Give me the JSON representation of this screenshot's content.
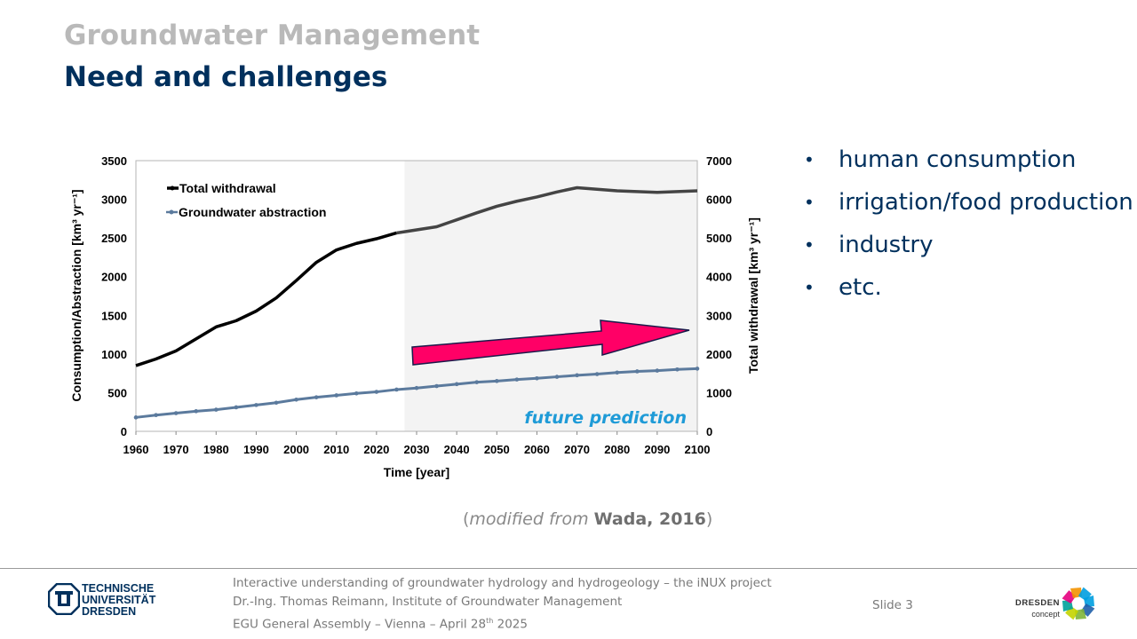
{
  "header": {
    "title": "Groundwater Management",
    "subtitle": "Need and challenges"
  },
  "bullets": [
    "human consumption",
    "irrigation/food production",
    "industry",
    "etc."
  ],
  "citation": {
    "prefix": "(",
    "italic": "modified  from",
    "bold": "Wada, 2016",
    "suffix": ")"
  },
  "footer": {
    "institution_logo": [
      "TECHNISCHE",
      "UNIVERSITÄT",
      "DRESDEN"
    ],
    "line1": "Interactive understanding of groundwater hydrology and hydrogeology – the iNUX project",
    "line2": "Dr.-Ing. Thomas Reimann, Institute of Groundwater Management",
    "line3_pre": "EGU General Assembly – Vienna – April 28",
    "line3_sup": "th",
    "line3_post": " 2025",
    "slide_label": "Slide 3",
    "partner_logo": [
      "DRESDEN",
      "concept"
    ]
  },
  "colors": {
    "title_gray": "#b9b9b9",
    "navy": "#00305d",
    "total_line": "#000000",
    "gw_line": "#5b7a9d",
    "arrow_fill": "#ff0066",
    "future_text": "#1f9bd7",
    "future_bg": "#f3f3f3"
  },
  "chart_data": {
    "type": "line",
    "xlabel": "Time [year]",
    "ylabel_left": "Consumption/Abstraction [km³ yr⁻¹]",
    "ylabel_right": "Total withdrawal [km³ yr⁻¹]",
    "xlim": [
      1960,
      2100
    ],
    "ylim_left": [
      0,
      3500
    ],
    "ylim_right": [
      0,
      7000
    ],
    "x_ticks": [
      "1960",
      "1970",
      "1980",
      "1990",
      "2000",
      "2010",
      "2020",
      "2030",
      "2040",
      "2050",
      "2060",
      "2070",
      "2080",
      "2090",
      "2100"
    ],
    "y_ticks_left": [
      "0",
      "500",
      "1000",
      "1500",
      "2000",
      "2500",
      "3000",
      "3500"
    ],
    "y_ticks_right": [
      "0",
      "1000",
      "2000",
      "3000",
      "4000",
      "5000",
      "6000",
      "7000"
    ],
    "future_region_start": 2027,
    "annotation": "future prediction",
    "legend_position": "top-left",
    "series": [
      {
        "name": "Total withdrawal",
        "axis": "right",
        "x": [
          1960,
          1965,
          1970,
          1975,
          1980,
          1985,
          1990,
          1995,
          2000,
          2005,
          2010,
          2015,
          2020,
          2025,
          2030,
          2035,
          2040,
          2045,
          2050,
          2055,
          2060,
          2065,
          2070,
          2075,
          2080,
          2085,
          2090,
          2095,
          2100
        ],
        "values": [
          1700,
          1870,
          2080,
          2390,
          2700,
          2860,
          3110,
          3450,
          3900,
          4370,
          4690,
          4860,
          4980,
          5130,
          5210,
          5290,
          5470,
          5650,
          5820,
          5950,
          6060,
          6190,
          6300,
          6260,
          6220,
          6200,
          6180,
          6200,
          6220
        ]
      },
      {
        "name": "Groundwater abstraction",
        "axis": "left",
        "x": [
          1960,
          1965,
          1970,
          1975,
          1980,
          1985,
          1990,
          1995,
          2000,
          2005,
          2010,
          2015,
          2020,
          2025,
          2030,
          2035,
          2040,
          2045,
          2050,
          2055,
          2060,
          2065,
          2070,
          2075,
          2080,
          2085,
          2090,
          2095,
          2100
        ],
        "values": [
          180,
          210,
          235,
          260,
          280,
          310,
          340,
          370,
          410,
          440,
          465,
          490,
          510,
          540,
          560,
          585,
          610,
          635,
          650,
          670,
          685,
          705,
          725,
          740,
          760,
          775,
          785,
          800,
          810
        ]
      }
    ]
  }
}
